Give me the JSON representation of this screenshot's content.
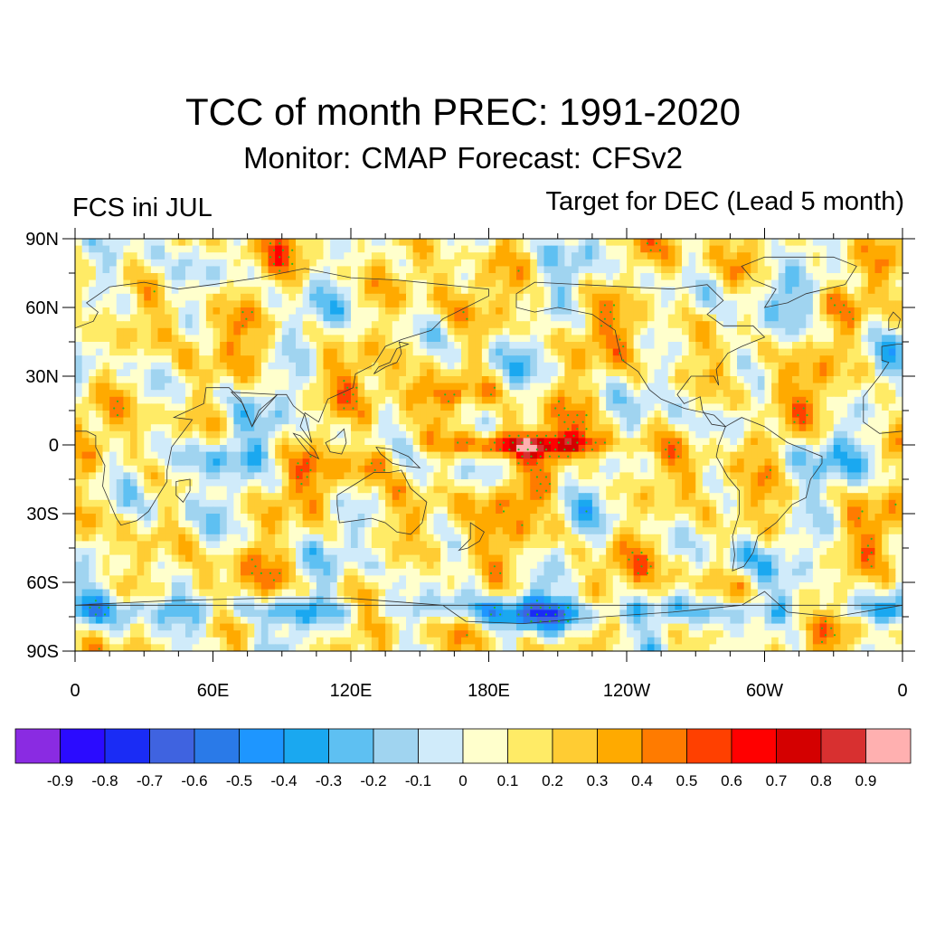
{
  "title": "TCC of month PREC: 1991-2020",
  "subtitle": "Monitor: CMAP   Forecast: CFSv2",
  "left_note": "FCS ini JUL",
  "right_note": "Target for DEC (Lead 5 month)",
  "map": {
    "projection": "cylindrical equidistant, 0-360 longitude",
    "lat_range": [
      -90,
      90
    ],
    "lon_range": [
      0,
      360
    ],
    "lat_ticks": [
      {
        "value": 90,
        "label": "90N"
      },
      {
        "value": 60,
        "label": "60N"
      },
      {
        "value": 30,
        "label": "30N"
      },
      {
        "value": 0,
        "label": "0"
      },
      {
        "value": -30,
        "label": "30S"
      },
      {
        "value": -60,
        "label": "60S"
      },
      {
        "value": -90,
        "label": "90S"
      }
    ],
    "lon_ticks": [
      {
        "value": 0,
        "label": "0"
      },
      {
        "value": 60,
        "label": "60E"
      },
      {
        "value": 120,
        "label": "120E"
      },
      {
        "value": 180,
        "label": "180E"
      },
      {
        "value": 240,
        "label": "120W"
      },
      {
        "value": 300,
        "label": "60W"
      },
      {
        "value": 360,
        "label": "0"
      }
    ],
    "stippling_color": "#22bb22",
    "coastline_color": "#333333"
  },
  "colorbar": {
    "colors": [
      "#8a2be2",
      "#2b0bff",
      "#1a2cf5",
      "#3f63e0",
      "#2a7ae8",
      "#1e96ff",
      "#1aa8f0",
      "#5ec0f2",
      "#a0d4f0",
      "#d0ebfa",
      "#ffffcc",
      "#ffeb66",
      "#ffcc33",
      "#ffaa00",
      "#ff7b00",
      "#ff4000",
      "#ff0000",
      "#d40000",
      "#d83030",
      "#ffb0b0"
    ],
    "labels": [
      "-0.9",
      "-0.8",
      "-0.7",
      "-0.6",
      "-0.5",
      "-0.4",
      "-0.3",
      "-0.2",
      "-0.1",
      "0",
      "0.1",
      "0.2",
      "0.3",
      "0.4",
      "0.5",
      "0.6",
      "0.7",
      "0.8",
      "0.9"
    ]
  }
}
